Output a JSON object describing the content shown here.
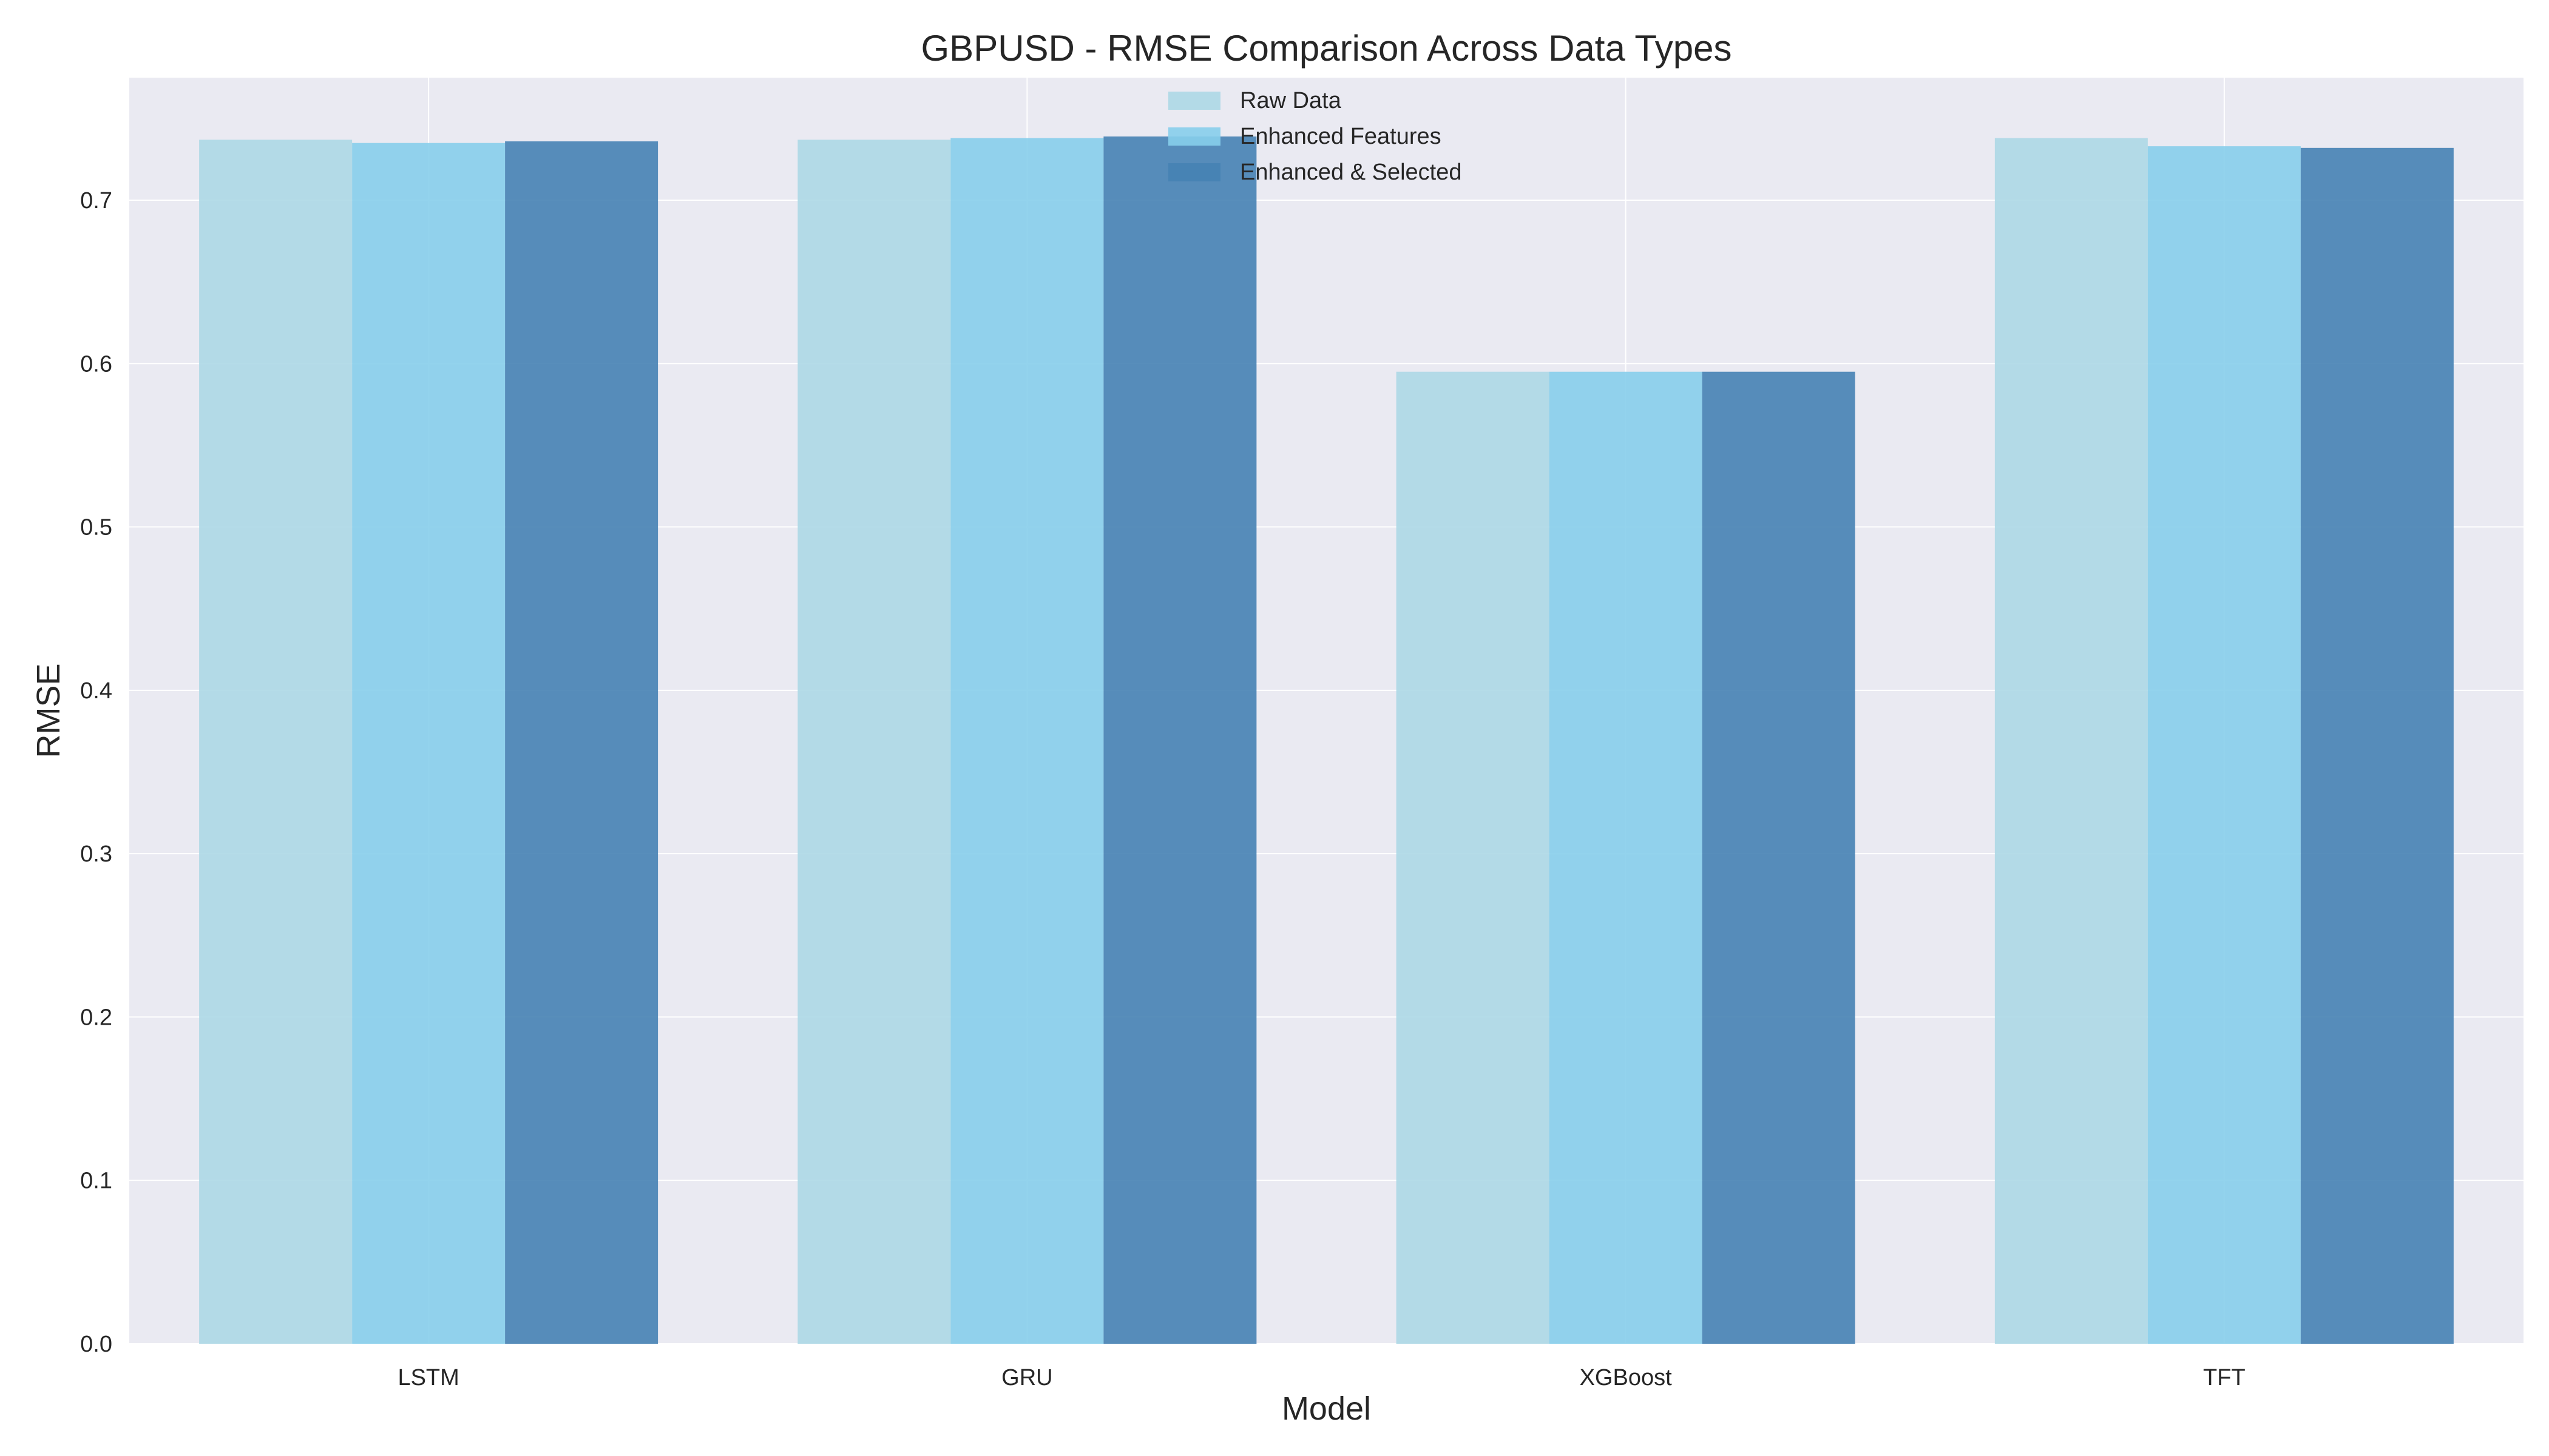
{
  "chart_data": {
    "type": "bar",
    "title": "GBPUSD - RMSE Comparison Across Data Types",
    "xlabel": "Model",
    "ylabel": "RMSE",
    "categories": [
      "LSTM",
      "GRU",
      "XGBoost",
      "TFT"
    ],
    "series": [
      {
        "name": "Raw Data",
        "values": [
          0.737,
          0.737,
          0.595,
          0.738
        ],
        "color": "#add8e6"
      },
      {
        "name": "Enhanced Features",
        "values": [
          0.735,
          0.738,
          0.595,
          0.733
        ],
        "color": "#87ceeb"
      },
      {
        "name": "Enhanced & Selected",
        "values": [
          0.736,
          0.739,
          0.595,
          0.732
        ],
        "color": "#4682b4"
      }
    ],
    "ylim": [
      0,
      0.775
    ],
    "yticks": [
      "0.0",
      "0.1",
      "0.2",
      "0.3",
      "0.4",
      "0.5",
      "0.6",
      "0.7"
    ],
    "grid": true,
    "legend_position": "top-center",
    "colors": {
      "plot_background": "#eaeaf2",
      "grid": "#ffffff"
    }
  }
}
